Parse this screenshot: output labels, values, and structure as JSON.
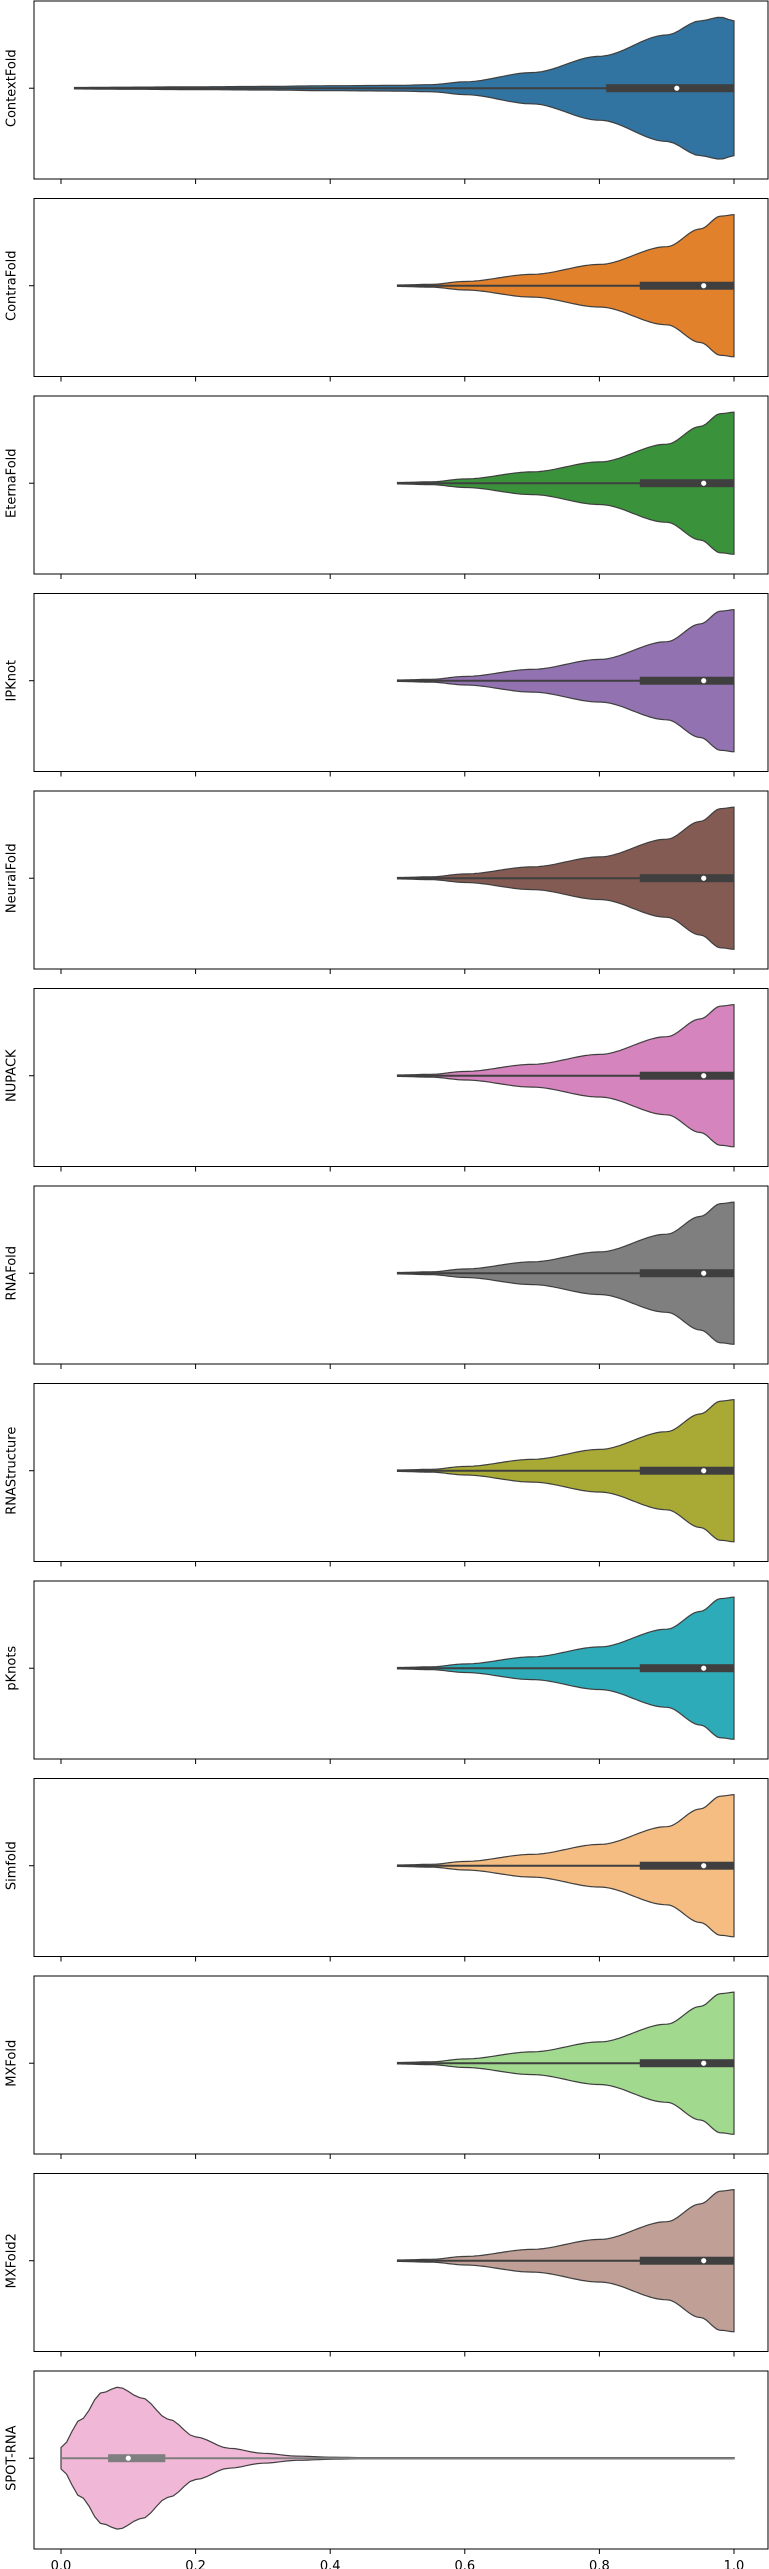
{
  "chart_data": {
    "type": "violin",
    "orientation": "horizontal",
    "xlim": [
      -0.05,
      1.05
    ],
    "x_ticks": [
      0.0,
      0.2,
      0.4,
      0.6,
      0.8,
      1.0
    ],
    "x_tick_labels": [
      "0.0",
      "0.2",
      "0.4",
      "0.6",
      "0.8",
      "1.0"
    ],
    "grid": false,
    "legend": "none",
    "series": [
      {
        "name": "ContextFold",
        "color": "#3274a1",
        "min": 0.02,
        "q1": 0.81,
        "median": 0.915,
        "q3": 1.0,
        "max": 1.0,
        "density": [
          [
            0.02,
            0.01
          ],
          [
            0.1,
            0.015
          ],
          [
            0.2,
            0.02
          ],
          [
            0.3,
            0.025
          ],
          [
            0.4,
            0.035
          ],
          [
            0.5,
            0.04
          ],
          [
            0.55,
            0.05
          ],
          [
            0.6,
            0.09
          ],
          [
            0.7,
            0.22
          ],
          [
            0.8,
            0.45
          ],
          [
            0.9,
            0.75
          ],
          [
            0.95,
            0.95
          ],
          [
            0.98,
            1.0
          ],
          [
            1.0,
            0.95
          ]
        ]
      },
      {
        "name": "ContraFold",
        "color": "#e1812c",
        "min": 0.5,
        "q1": 0.86,
        "median": 0.955,
        "q3": 1.0,
        "max": 1.0,
        "density": [
          [
            0.5,
            0.01
          ],
          [
            0.55,
            0.02
          ],
          [
            0.6,
            0.06
          ],
          [
            0.7,
            0.16
          ],
          [
            0.8,
            0.3
          ],
          [
            0.9,
            0.55
          ],
          [
            0.95,
            0.8
          ],
          [
            0.98,
            0.98
          ],
          [
            1.0,
            1.0
          ]
        ]
      },
      {
        "name": "EternaFold",
        "color": "#3a923a",
        "min": 0.5,
        "q1": 0.86,
        "median": 0.955,
        "q3": 1.0,
        "max": 1.0,
        "density": [
          [
            0.5,
            0.01
          ],
          [
            0.55,
            0.02
          ],
          [
            0.6,
            0.06
          ],
          [
            0.7,
            0.16
          ],
          [
            0.8,
            0.3
          ],
          [
            0.9,
            0.55
          ],
          [
            0.95,
            0.8
          ],
          [
            0.98,
            0.98
          ],
          [
            1.0,
            1.0
          ]
        ]
      },
      {
        "name": "IPKnot",
        "color": "#9372b2",
        "min": 0.5,
        "q1": 0.86,
        "median": 0.955,
        "q3": 1.0,
        "max": 1.0,
        "density": [
          [
            0.5,
            0.01
          ],
          [
            0.55,
            0.02
          ],
          [
            0.6,
            0.06
          ],
          [
            0.7,
            0.16
          ],
          [
            0.8,
            0.3
          ],
          [
            0.9,
            0.55
          ],
          [
            0.95,
            0.8
          ],
          [
            0.98,
            0.98
          ],
          [
            1.0,
            1.0
          ]
        ]
      },
      {
        "name": "NeuralFold",
        "color": "#845b53",
        "min": 0.5,
        "q1": 0.86,
        "median": 0.955,
        "q3": 1.0,
        "max": 1.0,
        "density": [
          [
            0.5,
            0.01
          ],
          [
            0.55,
            0.02
          ],
          [
            0.6,
            0.06
          ],
          [
            0.7,
            0.16
          ],
          [
            0.8,
            0.3
          ],
          [
            0.9,
            0.55
          ],
          [
            0.95,
            0.8
          ],
          [
            0.98,
            0.98
          ],
          [
            1.0,
            1.0
          ]
        ]
      },
      {
        "name": "NUPACK",
        "color": "#d684bd",
        "min": 0.5,
        "q1": 0.86,
        "median": 0.955,
        "q3": 1.0,
        "max": 1.0,
        "density": [
          [
            0.5,
            0.01
          ],
          [
            0.55,
            0.02
          ],
          [
            0.6,
            0.06
          ],
          [
            0.7,
            0.16
          ],
          [
            0.8,
            0.3
          ],
          [
            0.9,
            0.55
          ],
          [
            0.95,
            0.8
          ],
          [
            0.98,
            0.98
          ],
          [
            1.0,
            1.0
          ]
        ]
      },
      {
        "name": "RNAFold",
        "color": "#7f7f7f",
        "min": 0.5,
        "q1": 0.86,
        "median": 0.955,
        "q3": 1.0,
        "max": 1.0,
        "density": [
          [
            0.5,
            0.01
          ],
          [
            0.55,
            0.02
          ],
          [
            0.6,
            0.06
          ],
          [
            0.7,
            0.16
          ],
          [
            0.8,
            0.3
          ],
          [
            0.9,
            0.55
          ],
          [
            0.95,
            0.8
          ],
          [
            0.98,
            0.98
          ],
          [
            1.0,
            1.0
          ]
        ]
      },
      {
        "name": "RNAStructure",
        "color": "#a9aa35",
        "min": 0.5,
        "q1": 0.86,
        "median": 0.955,
        "q3": 1.0,
        "max": 1.0,
        "density": [
          [
            0.5,
            0.01
          ],
          [
            0.55,
            0.02
          ],
          [
            0.6,
            0.06
          ],
          [
            0.7,
            0.16
          ],
          [
            0.8,
            0.3
          ],
          [
            0.9,
            0.55
          ],
          [
            0.95,
            0.8
          ],
          [
            0.98,
            0.98
          ],
          [
            1.0,
            1.0
          ]
        ]
      },
      {
        "name": "pKnots",
        "color": "#2eabb8",
        "min": 0.5,
        "q1": 0.86,
        "median": 0.955,
        "q3": 1.0,
        "max": 1.0,
        "density": [
          [
            0.5,
            0.01
          ],
          [
            0.55,
            0.02
          ],
          [
            0.6,
            0.06
          ],
          [
            0.7,
            0.16
          ],
          [
            0.8,
            0.3
          ],
          [
            0.9,
            0.55
          ],
          [
            0.95,
            0.8
          ],
          [
            0.98,
            0.98
          ],
          [
            1.0,
            1.0
          ]
        ]
      },
      {
        "name": "Simfold",
        "color": "#f5bd82",
        "min": 0.5,
        "q1": 0.86,
        "median": 0.955,
        "q3": 1.0,
        "max": 1.0,
        "density": [
          [
            0.5,
            0.01
          ],
          [
            0.55,
            0.02
          ],
          [
            0.6,
            0.06
          ],
          [
            0.7,
            0.16
          ],
          [
            0.8,
            0.3
          ],
          [
            0.9,
            0.55
          ],
          [
            0.95,
            0.8
          ],
          [
            0.98,
            0.98
          ],
          [
            1.0,
            1.0
          ]
        ]
      },
      {
        "name": "MXFold",
        "color": "#a1d98e",
        "min": 0.5,
        "q1": 0.86,
        "median": 0.955,
        "q3": 1.0,
        "max": 1.0,
        "density": [
          [
            0.5,
            0.01
          ],
          [
            0.55,
            0.02
          ],
          [
            0.6,
            0.06
          ],
          [
            0.7,
            0.16
          ],
          [
            0.8,
            0.3
          ],
          [
            0.9,
            0.55
          ],
          [
            0.95,
            0.8
          ],
          [
            0.98,
            0.98
          ],
          [
            1.0,
            1.0
          ]
        ]
      },
      {
        "name": "MXFold2",
        "color": "#bf9f96",
        "min": 0.5,
        "q1": 0.86,
        "median": 0.955,
        "q3": 1.0,
        "max": 1.0,
        "density": [
          [
            0.5,
            0.01
          ],
          [
            0.55,
            0.02
          ],
          [
            0.6,
            0.06
          ],
          [
            0.7,
            0.16
          ],
          [
            0.8,
            0.3
          ],
          [
            0.9,
            0.55
          ],
          [
            0.95,
            0.8
          ],
          [
            0.98,
            0.98
          ],
          [
            1.0,
            1.0
          ]
        ]
      },
      {
        "name": "SPOT-RNA",
        "color": "#f0b8d6",
        "min": 0.0,
        "q1": 0.07,
        "median": 0.1,
        "q3": 0.155,
        "max": 1.0,
        "density": [
          [
            0.0,
            0.15
          ],
          [
            0.03,
            0.55
          ],
          [
            0.06,
            0.92
          ],
          [
            0.085,
            1.0
          ],
          [
            0.12,
            0.85
          ],
          [
            0.16,
            0.55
          ],
          [
            0.2,
            0.3
          ],
          [
            0.25,
            0.14
          ],
          [
            0.3,
            0.07
          ],
          [
            0.35,
            0.03
          ],
          [
            0.4,
            0.015
          ],
          [
            0.45,
            0.008
          ],
          [
            0.55,
            0.005
          ],
          [
            1.0,
            0.005
          ]
        ]
      }
    ]
  }
}
